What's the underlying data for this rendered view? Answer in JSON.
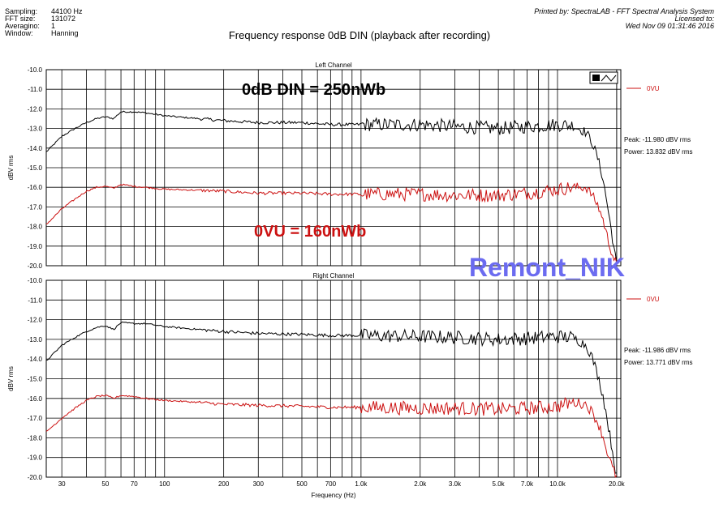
{
  "header": {
    "info": [
      {
        "key": "Sampling:",
        "value": "44100 Hz"
      },
      {
        "key": "FFT size:",
        "value": "131072"
      },
      {
        "key": "Averagino:",
        "value": "1"
      },
      {
        "key": "Window:",
        "value": "Hanning"
      }
    ],
    "printed_by": "Printed by: SpectraLAB - FFT Spectral Analysis System",
    "licensed_to": "Licensed to:",
    "timestamp": "Wed Nov 09 01:31:46 2016",
    "title": "Frequency response 0dB DIN (playback after recording)"
  },
  "watermark": {
    "text": "Remont_NIK",
    "color": "#6b6bf0"
  },
  "toolbar_icon": "mini-chart-icon",
  "colors": {
    "series_black": "#000000",
    "series_red": "#cc1111",
    "grid": "#000000",
    "annotation_red": "#cc1111"
  },
  "chart_data": [
    {
      "type": "line",
      "title": "Left Channel",
      "xlabel": "Frequency (Hz)",
      "ylabel": "dBV rms",
      "x_scale": "log",
      "xlim": [
        25,
        21000
      ],
      "ylim": [
        -20.0,
        -10.0
      ],
      "y_ticks": [
        "-10.0",
        "-11.0",
        "-12.0",
        "-13.0",
        "-14.0",
        "-15.0",
        "-16.0",
        "-17.0",
        "-18.0",
        "-19.0",
        "-20.0"
      ],
      "x_ticks": [],
      "grid": true,
      "legend": [
        {
          "name": "0VU",
          "color": "#cc1111"
        }
      ],
      "annotations": [
        {
          "text": "0dB DIN = 250nWb",
          "color": "#000000"
        },
        {
          "text": "0VU = 160nWb",
          "color": "#cc1111"
        }
      ],
      "stats": {
        "peak": "Peak: -11.980 dBV rms",
        "power": "Power: 13.832 dBV rms"
      },
      "series": [
        {
          "color": "#000000",
          "x": [
            25,
            30,
            35,
            40,
            45,
            50,
            55,
            60,
            70,
            80,
            100,
            150,
            200,
            300,
            500,
            700,
            1000,
            2000,
            3000,
            5000,
            7000,
            10000,
            12000,
            14000,
            15000,
            16000,
            17000,
            18000,
            19000,
            20000
          ],
          "y": [
            -14.2,
            -13.4,
            -13.0,
            -12.7,
            -12.5,
            -12.4,
            -12.5,
            -12.15,
            -12.15,
            -12.2,
            -12.35,
            -12.5,
            -12.6,
            -12.7,
            -12.7,
            -12.8,
            -12.8,
            -12.8,
            -12.9,
            -13.0,
            -12.9,
            -12.8,
            -12.85,
            -13.2,
            -13.7,
            -14.5,
            -15.5,
            -17.0,
            -18.5,
            -20.0
          ]
        },
        {
          "name": "0VU",
          "color": "#cc1111",
          "x": [
            25,
            30,
            35,
            40,
            45,
            50,
            55,
            60,
            70,
            80,
            100,
            150,
            200,
            300,
            500,
            700,
            1000,
            2000,
            3000,
            5000,
            7000,
            10000,
            12000,
            14000,
            15000,
            16000,
            17000,
            18000,
            19000,
            20000
          ],
          "y": [
            -17.9,
            -17.1,
            -16.6,
            -16.2,
            -16.0,
            -15.95,
            -16.05,
            -15.85,
            -15.95,
            -16.0,
            -16.1,
            -16.15,
            -16.2,
            -16.3,
            -16.3,
            -16.35,
            -16.35,
            -16.35,
            -16.4,
            -16.4,
            -16.3,
            -16.1,
            -16.0,
            -16.0,
            -16.4,
            -16.9,
            -17.6,
            -18.6,
            -19.4,
            -20.0
          ]
        }
      ]
    },
    {
      "type": "line",
      "title": "Right Channel",
      "xlabel": "Frequency (Hz)",
      "ylabel": "dBV rms",
      "x_scale": "log",
      "xlim": [
        25,
        21000
      ],
      "ylim": [
        -20.0,
        -10.0
      ],
      "y_ticks": [
        "-10.0",
        "-11.0",
        "-12.0",
        "-13.0",
        "-14.0",
        "-15.0",
        "-16.0",
        "-17.0",
        "-18.0",
        "-19.0",
        "-20.0"
      ],
      "x_ticks": [
        {
          "v": 30,
          "label": "30"
        },
        {
          "v": 50,
          "label": "50"
        },
        {
          "v": 70,
          "label": "70"
        },
        {
          "v": 100,
          "label": "100"
        },
        {
          "v": 200,
          "label": "200"
        },
        {
          "v": 300,
          "label": "300"
        },
        {
          "v": 500,
          "label": "500"
        },
        {
          "v": 700,
          "label": "700"
        },
        {
          "v": 1000,
          "label": "1.0k"
        },
        {
          "v": 2000,
          "label": "2.0k"
        },
        {
          "v": 3000,
          "label": "3.0k"
        },
        {
          "v": 5000,
          "label": "5.0k"
        },
        {
          "v": 7000,
          "label": "7.0k"
        },
        {
          "v": 10000,
          "label": "10.0k"
        },
        {
          "v": 20000,
          "label": "20.0k"
        }
      ],
      "grid": true,
      "legend": [
        {
          "name": "0VU",
          "color": "#cc1111"
        }
      ],
      "annotations": [],
      "stats": {
        "peak": "Peak: -11.986 dBV rms",
        "power": "Power: 13.771 dBV rms"
      },
      "series": [
        {
          "color": "#000000",
          "x": [
            25,
            30,
            35,
            40,
            45,
            50,
            55,
            60,
            70,
            80,
            100,
            150,
            200,
            300,
            500,
            700,
            1000,
            2000,
            3000,
            5000,
            7000,
            10000,
            12000,
            14000,
            15000,
            16000,
            17000,
            18000,
            19000,
            20000
          ],
          "y": [
            -14.1,
            -13.3,
            -12.9,
            -12.6,
            -12.4,
            -12.3,
            -12.5,
            -12.15,
            -12.2,
            -12.2,
            -12.35,
            -12.5,
            -12.6,
            -12.7,
            -12.75,
            -12.8,
            -12.8,
            -12.85,
            -12.9,
            -13.0,
            -12.95,
            -12.85,
            -12.9,
            -13.3,
            -13.9,
            -14.8,
            -15.8,
            -17.2,
            -18.6,
            -20.0
          ]
        },
        {
          "name": "0VU",
          "color": "#cc1111",
          "x": [
            25,
            30,
            35,
            40,
            45,
            50,
            55,
            60,
            70,
            80,
            100,
            150,
            200,
            300,
            500,
            700,
            1000,
            2000,
            3000,
            5000,
            7000,
            10000,
            12000,
            14000,
            15000,
            16000,
            17000,
            18000,
            19000,
            20000
          ],
          "y": [
            -17.7,
            -17.0,
            -16.5,
            -16.1,
            -15.9,
            -15.85,
            -16.0,
            -15.85,
            -15.9,
            -16.0,
            -16.1,
            -16.2,
            -16.3,
            -16.35,
            -16.4,
            -16.45,
            -16.45,
            -16.5,
            -16.5,
            -16.55,
            -16.5,
            -16.4,
            -16.2,
            -16.3,
            -16.7,
            -17.2,
            -17.9,
            -18.8,
            -19.5,
            -20.0
          ]
        }
      ]
    }
  ]
}
